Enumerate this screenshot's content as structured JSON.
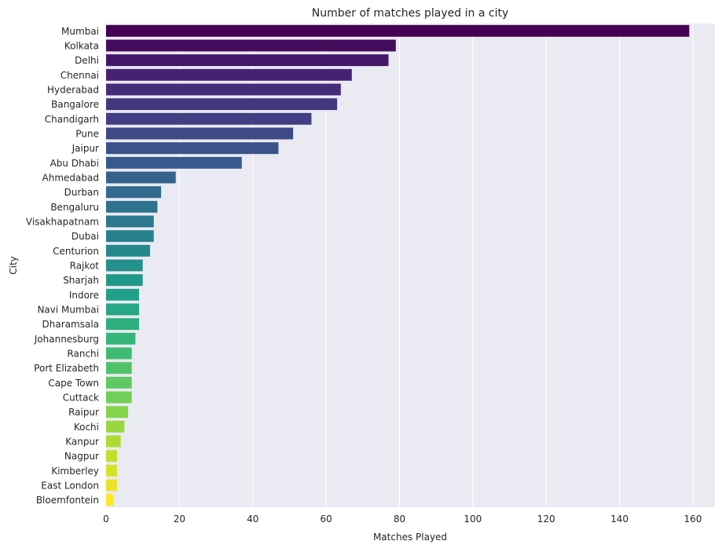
{
  "chart_data": {
    "type": "bar",
    "orientation": "horizontal",
    "title": "Number of matches played in a city",
    "xlabel": "Matches Played",
    "ylabel": "City",
    "xlim": [
      0,
      166
    ],
    "xticks": [
      0,
      20,
      40,
      60,
      80,
      100,
      120,
      140,
      160
    ],
    "grid": true,
    "categories": [
      "Mumbai",
      "Kolkata",
      "Delhi",
      "Chennai",
      "Hyderabad",
      "Bangalore",
      "Chandigarh",
      "Pune",
      "Jaipur",
      "Abu Dhabi",
      "Ahmedabad",
      "Durban",
      "Bengaluru",
      "Visakhapatnam",
      "Dubai",
      "Centurion",
      "Rajkot",
      "Sharjah",
      "Indore",
      "Navi Mumbai",
      "Dharamsala",
      "Johannesburg",
      "Ranchi",
      "Port Elizabeth",
      "Cape Town",
      "Cuttack",
      "Raipur",
      "Kochi",
      "Kanpur",
      "Nagpur",
      "Kimberley",
      "East London",
      "Bloemfontein"
    ],
    "values": [
      159,
      79,
      77,
      67,
      64,
      63,
      56,
      51,
      47,
      37,
      19,
      15,
      14,
      13,
      13,
      12,
      10,
      10,
      9,
      9,
      9,
      8,
      7,
      7,
      7,
      7,
      6,
      5,
      4,
      3,
      3,
      3,
      2
    ],
    "palette": "viridis"
  }
}
